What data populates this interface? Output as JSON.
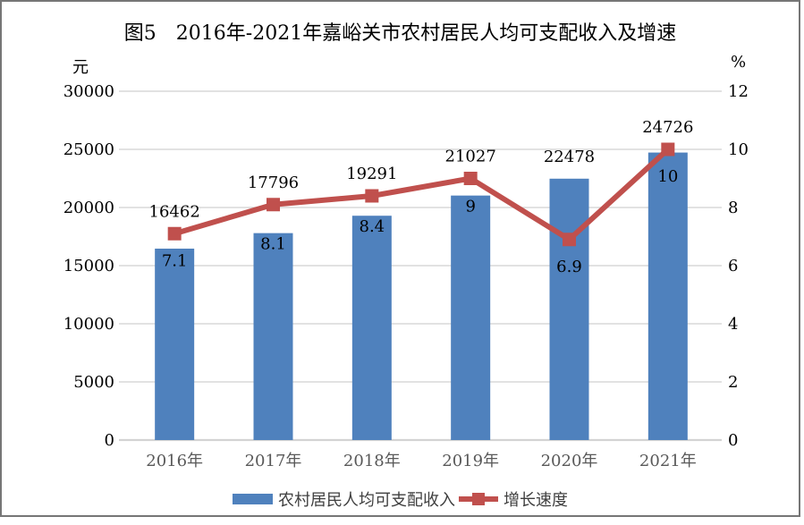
{
  "figure": {
    "background": "#ffffff",
    "border_color": "#767676"
  },
  "chart_data": {
    "type": "combo-bar-line",
    "title": "图5　2016年-2021年嘉峪关市农村居民人均可支配收入及增速",
    "categories": [
      "2016年",
      "2017年",
      "2018年",
      "2019年",
      "2020年",
      "2021年"
    ],
    "series": [
      {
        "name": "农村居民人均可支配收入",
        "type": "bar",
        "axis": "left",
        "values": [
          16462,
          17796,
          19291,
          21027,
          22478,
          24726
        ],
        "color": "#4f81bd"
      },
      {
        "name": "增长速度",
        "type": "line",
        "axis": "right",
        "values": [
          7.1,
          8.1,
          8.4,
          9,
          6.9,
          10
        ],
        "color": "#c0504d",
        "marker": "square"
      }
    ],
    "left_axis": {
      "unit": "元",
      "min": 0,
      "max": 30000,
      "step": 5000,
      "tick_labels": [
        "0",
        "5000",
        "10000",
        "15000",
        "20000",
        "25000",
        "30000"
      ]
    },
    "right_axis": {
      "unit": "%",
      "min": 0,
      "max": 12,
      "step": 2,
      "tick_labels": [
        "0",
        "2",
        "4",
        "6",
        "8",
        "10",
        "12"
      ]
    },
    "grid": true,
    "legend_position": "bottom",
    "colors": {
      "grid": "#d9d9d9",
      "axis_line": "#d3d3d3",
      "tick_text": "#000000",
      "category_text": "#595959",
      "data_label_text": "#000000"
    }
  }
}
